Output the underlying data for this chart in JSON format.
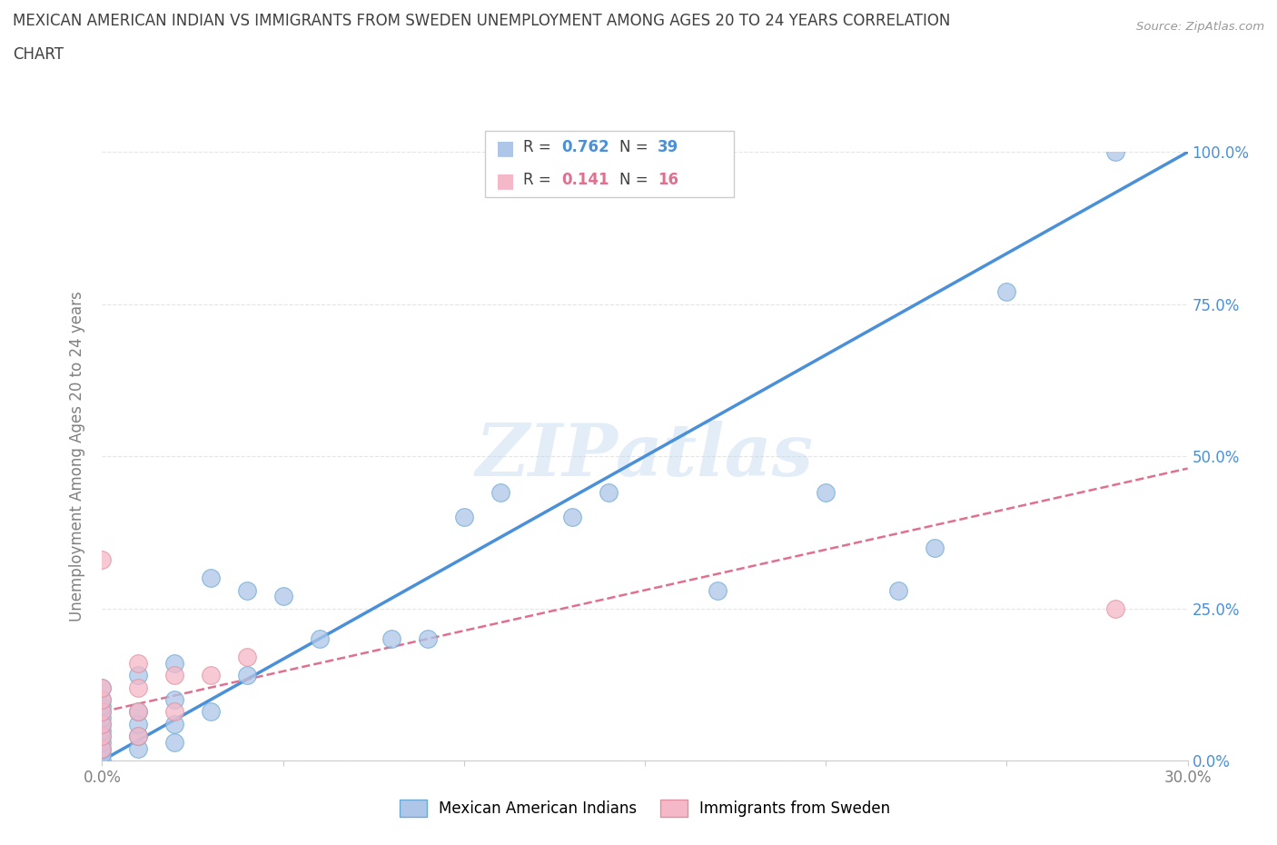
{
  "title_line1": "MEXICAN AMERICAN INDIAN VS IMMIGRANTS FROM SWEDEN UNEMPLOYMENT AMONG AGES 20 TO 24 YEARS CORRELATION",
  "title_line2": "CHART",
  "source": "Source: ZipAtlas.com",
  "ylabel": "Unemployment Among Ages 20 to 24 years",
  "xlim": [
    0.0,
    0.3
  ],
  "ylim": [
    0.0,
    1.0
  ],
  "xticks": [
    0.0,
    0.05,
    0.1,
    0.15,
    0.2,
    0.25,
    0.3
  ],
  "yticks": [
    0.0,
    0.25,
    0.5,
    0.75,
    1.0
  ],
  "yticklabels": [
    "0.0%",
    "25.0%",
    "50.0%",
    "75.0%",
    "100.0%"
  ],
  "blue_R": 0.762,
  "blue_N": 39,
  "pink_R": 0.141,
  "pink_N": 16,
  "blue_color": "#aec6e8",
  "blue_edge_color": "#6aaad4",
  "blue_line_color": "#4a90d9",
  "pink_color": "#f4b8c8",
  "pink_edge_color": "#e090a0",
  "pink_line_color": "#e07090",
  "watermark": "ZIPatlas",
  "legend_label_blue": "Mexican American Indians",
  "legend_label_pink": "Immigrants from Sweden",
  "blue_scatter_x": [
    0.0,
    0.0,
    0.0,
    0.0,
    0.0,
    0.0,
    0.0,
    0.0,
    0.0,
    0.0,
    0.0,
    0.0,
    0.01,
    0.01,
    0.01,
    0.01,
    0.01,
    0.02,
    0.02,
    0.02,
    0.02,
    0.03,
    0.03,
    0.04,
    0.04,
    0.05,
    0.06,
    0.08,
    0.09,
    0.1,
    0.11,
    0.13,
    0.14,
    0.17,
    0.2,
    0.22,
    0.23,
    0.25,
    0.28
  ],
  "blue_scatter_y": [
    0.0,
    0.01,
    0.02,
    0.03,
    0.04,
    0.05,
    0.06,
    0.07,
    0.08,
    0.09,
    0.1,
    0.12,
    0.02,
    0.04,
    0.06,
    0.08,
    0.14,
    0.03,
    0.06,
    0.1,
    0.16,
    0.08,
    0.3,
    0.14,
    0.28,
    0.27,
    0.2,
    0.2,
    0.2,
    0.4,
    0.44,
    0.4,
    0.44,
    0.28,
    0.44,
    0.28,
    0.35,
    0.77,
    1.0
  ],
  "pink_scatter_x": [
    0.0,
    0.0,
    0.0,
    0.0,
    0.0,
    0.0,
    0.0,
    0.01,
    0.01,
    0.01,
    0.01,
    0.02,
    0.02,
    0.03,
    0.04,
    0.28
  ],
  "pink_scatter_y": [
    0.02,
    0.04,
    0.06,
    0.08,
    0.1,
    0.12,
    0.33,
    0.04,
    0.08,
    0.12,
    0.16,
    0.08,
    0.14,
    0.14,
    0.17,
    0.25
  ],
  "blue_trend_x": [
    0.0,
    0.3
  ],
  "blue_trend_y": [
    0.0,
    1.0
  ],
  "pink_trend_x": [
    0.0,
    0.3
  ],
  "pink_trend_y": [
    0.08,
    0.48
  ],
  "background_color": "#ffffff",
  "grid_color": "#e5e5e5",
  "title_color": "#404040",
  "axis_label_color": "#808080",
  "right_label_color": "#4a90d9"
}
